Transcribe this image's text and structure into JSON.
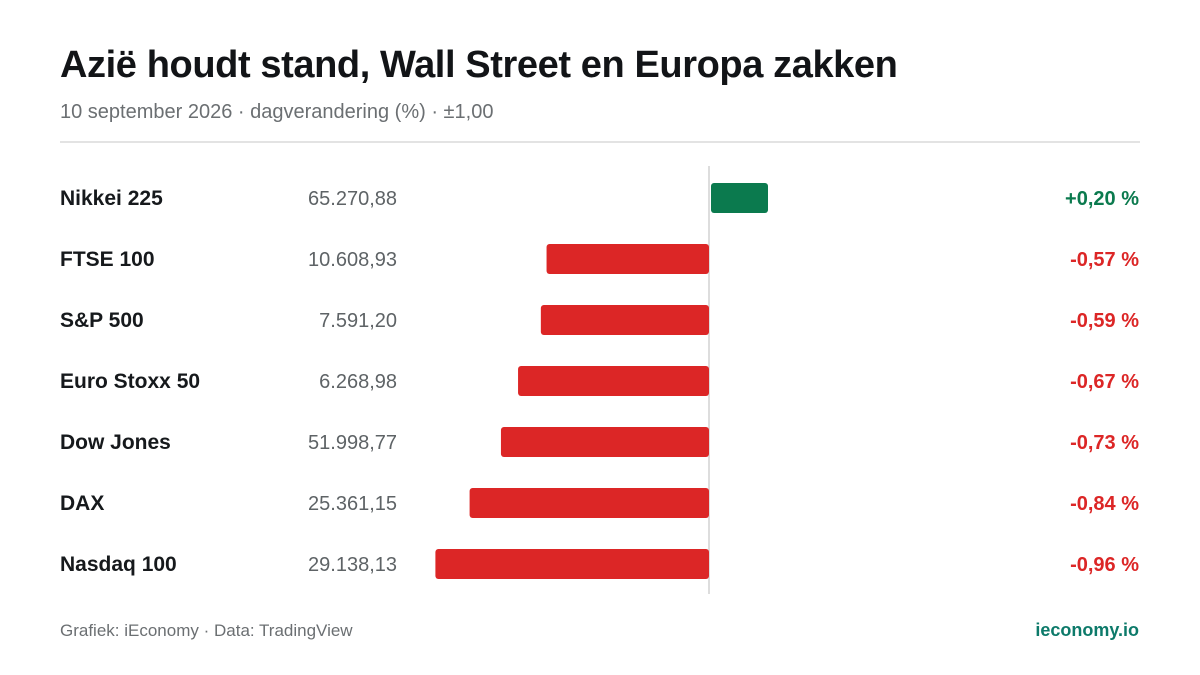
{
  "header": {
    "title": "Azië houdt stand, Wall Street en Europa zakken",
    "subtitle": "10 september 2026 · dagverandering (%) · ±1,00"
  },
  "footer": {
    "credit": "Grafiek: iEconomy · Data: TradingView",
    "brand": "ieconomy.io"
  },
  "colors": {
    "positive": "#0b7a4e",
    "negative": "#dc2626",
    "axis": "#dddddd"
  },
  "chart_data": {
    "type": "bar",
    "orientation": "horizontal",
    "xlim": [
      -1.0,
      1.0
    ],
    "grid": false,
    "rows": [
      {
        "name": "Nikkei 225",
        "price": "65.270,88",
        "value": 0.2,
        "label": "+0,20 %"
      },
      {
        "name": "FTSE 100",
        "price": "10.608,93",
        "value": -0.57,
        "label": "-0,57 %"
      },
      {
        "name": "S&P 500",
        "price": "7.591,20",
        "value": -0.59,
        "label": "-0,59 %"
      },
      {
        "name": "Euro Stoxx 50",
        "price": "6.268,98",
        "value": -0.67,
        "label": "-0,67 %"
      },
      {
        "name": "Dow Jones",
        "price": "51.998,77",
        "value": -0.73,
        "label": "-0,73 %"
      },
      {
        "name": "DAX",
        "price": "25.361,15",
        "value": -0.84,
        "label": "-0,84 %"
      },
      {
        "name": "Nasdaq 100",
        "price": "29.138,13",
        "value": -0.96,
        "label": "-0,96 %"
      }
    ]
  }
}
